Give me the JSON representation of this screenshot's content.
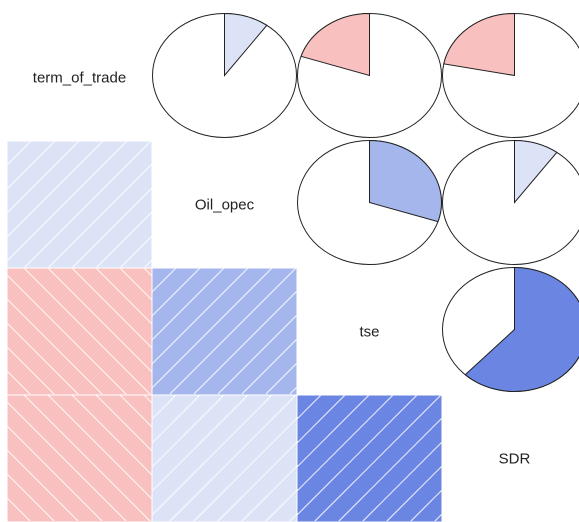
{
  "chart_data": {
    "type": "heatmap",
    "variables": [
      "term_of_trade",
      "Oil_opec",
      "tse",
      "SDR"
    ],
    "correlations": [
      {
        "row": "Oil_opec",
        "col": "term_of_trade",
        "value": 0.1
      },
      {
        "row": "tse",
        "col": "term_of_trade",
        "value": -0.2
      },
      {
        "row": "tse",
        "col": "Oil_opec",
        "value": 0.3
      },
      {
        "row": "SDR",
        "col": "term_of_trade",
        "value": -0.22
      },
      {
        "row": "SDR",
        "col": "Oil_opec",
        "value": 0.1
      },
      {
        "row": "SDR",
        "col": "tse",
        "value": 0.62
      }
    ],
    "lower_panel": "shade",
    "upper_panel": "pie",
    "diagonal": "variable names",
    "colors": {
      "positive_weak": "#dde3f7",
      "positive_mid": "#a5b6ec",
      "positive_strong": "#6a86e2",
      "negative": "#f8c1bf",
      "pie_empty": "#ffffff",
      "outline": "#222222"
    }
  }
}
